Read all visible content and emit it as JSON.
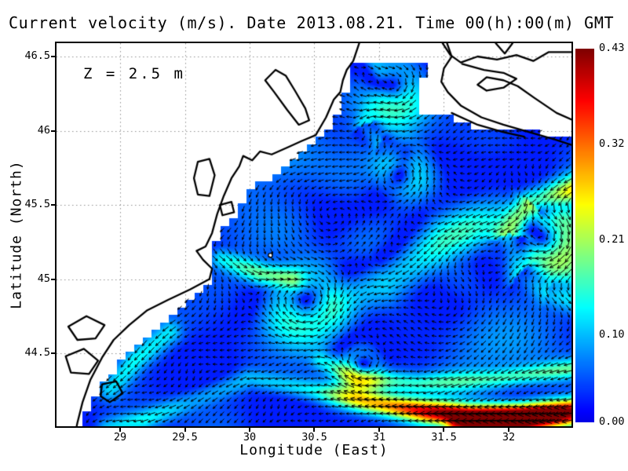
{
  "title": "Current velocity (m/s). Date 2013.08.21. Time 00(h):00(m) GMT",
  "annotation": "Z = 2.5 m",
  "axes": {
    "x": {
      "label": "Longitude (East)",
      "tick_values": [
        29,
        29.5,
        30,
        30.5,
        31,
        31.5,
        32
      ],
      "tick_labels": [
        "29",
        "29.5",
        "30",
        "30.5",
        "31",
        "31.5",
        "32"
      ],
      "range": [
        28.509,
        32.485
      ]
    },
    "y": {
      "label": "Latitude (North)",
      "tick_values": [
        46.5,
        46,
        45.5,
        45,
        44.5
      ],
      "tick_labels": [
        "46.5",
        "46",
        "45.5",
        "45",
        "44.5"
      ],
      "range": [
        44.008,
        46.59
      ]
    }
  },
  "colorbar": {
    "min": 0,
    "max": 0.43,
    "colormap": "jet",
    "tick_values": [
      0.43,
      0.32,
      0.21,
      0.1,
      0.0
    ],
    "tick_labels": [
      "0.43",
      "0.32",
      "0.21",
      "0.10",
      "0.00"
    ]
  },
  "colors": {
    "background": "#ffffff",
    "land": "#ffffff",
    "coastline": "#000000",
    "grid": "#909090",
    "arrow": "#000000",
    "text": "#000000"
  },
  "chart_data": {
    "type": "heatmap",
    "subtype": "vector_field_map",
    "quantity": "current velocity (m/s)",
    "depth_m": 2.5,
    "date": "2013.08.21",
    "time": "00(h):00(m) GMT",
    "lon_range": [
      28.509,
      32.485
    ],
    "lat_range": [
      44.008,
      46.59
    ],
    "speed_range": [
      0.0,
      0.43
    ],
    "grid_cell_deg": {
      "dlon": 0.0667,
      "dlat": 0.05
    },
    "arrow_spacing_px": 9,
    "sea_west_boundary": [
      [
        43.95,
        28.64
      ],
      [
        44.0,
        28.66
      ],
      [
        44.2,
        28.8
      ],
      [
        44.4,
        28.97
      ],
      [
        44.55,
        29.12
      ],
      [
        44.7,
        29.32
      ],
      [
        44.8,
        29.47
      ],
      [
        44.9,
        29.6
      ],
      [
        45.0,
        29.7
      ],
      [
        45.1,
        29.72
      ],
      [
        45.2,
        29.68
      ],
      [
        45.3,
        29.76
      ],
      [
        45.4,
        29.86
      ],
      [
        45.5,
        29.92
      ],
      [
        45.6,
        30.02
      ],
      [
        45.7,
        30.17
      ],
      [
        45.8,
        30.33
      ],
      [
        45.9,
        30.48
      ],
      [
        45.97,
        30.55
      ],
      [
        46.05,
        30.64
      ]
    ],
    "sea_north_boundary": [
      [
        28.5,
        46.05
      ],
      [
        30.7,
        46.06
      ],
      [
        31.25,
        46.12
      ],
      [
        31.55,
        46.1
      ],
      [
        31.7,
        46.04
      ],
      [
        31.9,
        46.0
      ],
      [
        32.5,
        45.97
      ]
    ],
    "estuary": {
      "lat_range": [
        46.05,
        46.48
      ],
      "west": [
        [
          46.05,
          30.64
        ],
        [
          46.18,
          30.7
        ],
        [
          46.26,
          30.72
        ],
        [
          46.32,
          30.79
        ],
        [
          46.48,
          30.8
        ]
      ],
      "east": [
        [
          46.05,
          31.3
        ],
        [
          46.14,
          31.3
        ],
        [
          46.24,
          31.28
        ],
        [
          46.3,
          31.33
        ],
        [
          46.48,
          31.37
        ]
      ]
    },
    "island": {
      "name": "snake-island",
      "lon": 30.16,
      "lat": 45.16
    },
    "coastlines": [
      {
        "name": "west-coast",
        "closed": false,
        "points": [
          [
            30.85,
            46.6
          ],
          [
            30.8,
            46.47
          ],
          [
            30.75,
            46.41
          ],
          [
            30.72,
            46.34
          ],
          [
            30.7,
            46.26
          ],
          [
            30.65,
            46.21
          ],
          [
            30.59,
            46.09
          ],
          [
            30.51,
            45.97
          ],
          [
            30.4,
            45.93
          ],
          [
            30.3,
            45.89
          ],
          [
            30.17,
            45.84
          ],
          [
            30.08,
            45.86
          ],
          [
            30.02,
            45.8
          ],
          [
            29.95,
            45.83
          ],
          [
            29.92,
            45.76
          ],
          [
            29.86,
            45.68
          ],
          [
            29.8,
            45.56
          ],
          [
            29.75,
            45.44
          ],
          [
            29.71,
            45.31
          ],
          [
            29.66,
            45.22
          ],
          [
            29.59,
            45.19
          ],
          [
            29.64,
            45.13
          ],
          [
            29.71,
            45.07
          ],
          [
            29.69,
            45.0
          ],
          [
            29.54,
            44.93
          ],
          [
            29.37,
            44.86
          ],
          [
            29.21,
            44.79
          ],
          [
            29.07,
            44.69
          ],
          [
            28.95,
            44.59
          ],
          [
            28.86,
            44.47
          ],
          [
            28.77,
            44.32
          ],
          [
            28.71,
            44.17
          ],
          [
            28.67,
            44.03
          ],
          [
            28.65,
            43.95
          ]
        ]
      },
      {
        "name": "dniester-liman",
        "closed": true,
        "points": [
          [
            30.12,
            46.34
          ],
          [
            30.2,
            46.41
          ],
          [
            30.28,
            46.37
          ],
          [
            30.35,
            46.27
          ],
          [
            30.43,
            46.15
          ],
          [
            30.46,
            46.07
          ],
          [
            30.38,
            46.04
          ],
          [
            30.29,
            46.14
          ],
          [
            30.19,
            46.26
          ]
        ]
      },
      {
        "name": "sasyk-lagoon",
        "closed": true,
        "points": [
          [
            29.6,
            45.79
          ],
          [
            29.69,
            45.81
          ],
          [
            29.73,
            45.7
          ],
          [
            29.69,
            45.56
          ],
          [
            29.6,
            45.57
          ],
          [
            29.57,
            45.68
          ]
        ]
      },
      {
        "name": "small-lagoon",
        "closed": true,
        "points": [
          [
            29.77,
            45.5
          ],
          [
            29.86,
            45.52
          ],
          [
            29.88,
            45.45
          ],
          [
            29.79,
            45.43
          ]
        ]
      },
      {
        "name": "danube-lake-1",
        "closed": true,
        "points": [
          [
            28.6,
            44.68
          ],
          [
            28.74,
            44.75
          ],
          [
            28.88,
            44.69
          ],
          [
            28.81,
            44.6
          ],
          [
            28.67,
            44.59
          ]
        ]
      },
      {
        "name": "danube-lake-2",
        "closed": true,
        "points": [
          [
            28.58,
            44.48
          ],
          [
            28.72,
            44.53
          ],
          [
            28.83,
            44.45
          ],
          [
            28.76,
            44.36
          ],
          [
            28.62,
            44.37
          ]
        ]
      },
      {
        "name": "danube-lake-3",
        "closed": true,
        "points": [
          [
            28.86,
            44.29
          ],
          [
            28.97,
            44.31
          ],
          [
            29.02,
            44.23
          ],
          [
            28.92,
            44.17
          ],
          [
            28.85,
            44.21
          ]
        ]
      },
      {
        "name": "kinburn-spit",
        "closed": false,
        "points": [
          [
            31.52,
            46.6
          ],
          [
            31.56,
            46.5
          ],
          [
            31.5,
            46.42
          ],
          [
            31.48,
            46.33
          ],
          [
            31.53,
            46.26
          ],
          [
            31.63,
            46.17
          ],
          [
            31.79,
            46.09
          ],
          [
            31.96,
            46.04
          ],
          [
            32.16,
            45.99
          ],
          [
            32.36,
            45.94
          ],
          [
            32.5,
            45.9
          ]
        ]
      },
      {
        "name": "tendra-spit-inner",
        "closed": false,
        "points": [
          [
            31.56,
            46.12
          ],
          [
            31.76,
            46.04
          ],
          [
            31.96,
            45.99
          ],
          [
            32.12,
            45.96
          ]
        ]
      },
      {
        "name": "north-shore",
        "closed": false,
        "points": [
          [
            31.49,
            46.59
          ],
          [
            31.55,
            46.51
          ],
          [
            31.63,
            46.46
          ],
          [
            31.76,
            46.5
          ],
          [
            31.91,
            46.48
          ],
          [
            32.06,
            46.51
          ],
          [
            32.19,
            46.47
          ],
          [
            32.31,
            46.53
          ],
          [
            32.5,
            46.53
          ]
        ]
      },
      {
        "name": "yahorlyk-line",
        "closed": false,
        "points": [
          [
            31.64,
            46.45
          ],
          [
            31.81,
            46.41
          ],
          [
            31.96,
            46.39
          ],
          [
            32.06,
            46.35
          ],
          [
            31.96,
            46.29
          ],
          [
            31.83,
            46.27
          ],
          [
            31.76,
            46.31
          ],
          [
            31.83,
            46.36
          ],
          [
            31.96,
            46.34
          ],
          [
            32.07,
            46.3
          ],
          [
            32.2,
            46.22
          ],
          [
            32.37,
            46.12
          ],
          [
            32.5,
            46.07
          ]
        ]
      },
      {
        "name": "top-zigzag",
        "closed": false,
        "points": [
          [
            31.9,
            46.59
          ],
          [
            31.97,
            46.52
          ],
          [
            32.03,
            46.59
          ]
        ]
      }
    ],
    "features": {
      "background_flow": {
        "u": -0.022,
        "v": -0.018,
        "noise_amp": 0.013
      },
      "jets": [
        {
          "name": "rim-current",
          "sigma": 0.055,
          "path": [
            [
              32.5,
              44.13,
              0.33
            ],
            [
              32.1,
              44.09,
              0.43
            ],
            [
              31.7,
              44.08,
              0.43
            ],
            [
              31.35,
              44.11,
              0.33
            ],
            [
              30.9,
              44.17,
              0.2
            ],
            [
              30.5,
              44.25,
              0.11
            ],
            [
              30.0,
              44.33,
              0.08
            ],
            [
              29.55,
              44.18,
              0.06
            ],
            [
              29.18,
              44.05,
              0.11
            ],
            [
              28.9,
              44.0,
              0.08
            ]
          ]
        },
        {
          "name": "rim-south-lobe",
          "sigma": 0.05,
          "path": [
            [
              32.5,
              44.06,
              0.2
            ],
            [
              32.05,
              44.01,
              0.28
            ],
            [
              31.6,
              43.99,
              0.22
            ]
          ]
        },
        {
          "name": "counter-band",
          "sigma": 0.05,
          "path": [
            [
              32.5,
              44.4,
              0.13
            ],
            [
              31.9,
              44.33,
              0.12
            ],
            [
              31.3,
              44.3,
              0.1
            ],
            [
              30.85,
              44.33,
              0.11
            ],
            [
              30.55,
              44.45,
              0.08
            ]
          ]
        },
        {
          "name": "midshelf-band",
          "sigma": 0.13,
          "path": [
            [
              31.95,
              45.44,
              0.15
            ],
            [
              31.5,
              45.26,
              0.16
            ],
            [
              31.05,
              45.0,
              0.14
            ],
            [
              30.6,
              44.85,
              0.09
            ],
            [
              30.2,
              44.78,
              0.05
            ]
          ]
        },
        {
          "name": "snake-island-band",
          "sigma": 0.06,
          "path": [
            [
              29.78,
              45.14,
              0.12
            ],
            [
              30.08,
              45.04,
              0.15
            ],
            [
              30.32,
              45.0,
              0.11
            ]
          ]
        },
        {
          "name": "east-meander",
          "sigma": 0.08,
          "path": [
            [
              32.5,
              45.6,
              0.27
            ],
            [
              32.18,
              45.52,
              0.26
            ],
            [
              32.0,
              45.3,
              0.21
            ],
            [
              32.08,
              45.05,
              0.17
            ],
            [
              32.3,
              44.92,
              0.14
            ],
            [
              32.5,
              44.87,
              0.13
            ]
          ]
        },
        {
          "name": "estuary-outflow",
          "sigma": 0.06,
          "path": [
            [
              30.95,
              46.3,
              0.08
            ],
            [
              30.88,
              46.05,
              0.12
            ],
            [
              31.0,
              45.92,
              0.12
            ],
            [
              31.18,
              45.86,
              0.08
            ]
          ]
        },
        {
          "name": "estuary-top-patch",
          "sigma": 0.05,
          "path": [
            [
              30.93,
              46.52,
              0.09
            ],
            [
              31.0,
              46.38,
              0.07
            ]
          ]
        },
        {
          "name": "sw-coastal",
          "sigma": 0.06,
          "path": [
            [
              29.38,
              44.64,
              0.08
            ],
            [
              29.12,
              44.46,
              0.1
            ],
            [
              28.92,
              44.26,
              0.08
            ]
          ]
        }
      ],
      "eddies": [
        {
          "name": "shelf-anticyclone-1",
          "lon": 30.44,
          "lat": 44.82,
          "r0": 0.18,
          "peak": 0.12,
          "rotation": "cw"
        },
        {
          "name": "shelf-anticyclone-2",
          "lon": 30.86,
          "lat": 44.4,
          "r0": 0.11,
          "peak": 0.1,
          "rotation": "cw"
        },
        {
          "name": "east-anticyclone",
          "lon": 32.27,
          "lat": 45.27,
          "r0": 0.2,
          "peak": 0.17,
          "rotation": "cw"
        },
        {
          "name": "mouth-cyclone",
          "lon": 31.17,
          "lat": 45.72,
          "r0": 0.13,
          "peak": 0.09,
          "rotation": "ccw"
        },
        {
          "name": "estuary-gyre",
          "lon": 31.1,
          "lat": 46.28,
          "r0": 0.15,
          "peak": 0.1,
          "rotation": "cw"
        },
        {
          "name": "interior-swirl-1",
          "lon": 30.55,
          "lat": 45.5,
          "r0": 0.45,
          "peak": 0.045,
          "rotation": "ccw"
        },
        {
          "name": "interior-swirl-2",
          "lon": 31.45,
          "lat": 44.72,
          "r0": 0.45,
          "peak": 0.04,
          "rotation": "cw"
        }
      ]
    }
  }
}
